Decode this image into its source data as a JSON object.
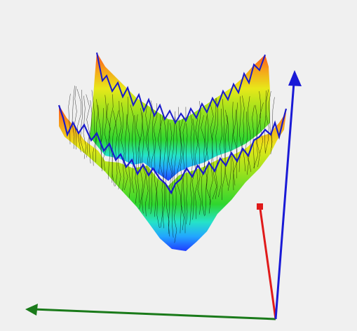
{
  "scene": {
    "background": "#f0f0f0",
    "surface": {
      "mesh_color": "#000000",
      "outline_color": "#1a1acc",
      "colormap": [
        "#1f3cff",
        "#22a6ff",
        "#25e3c8",
        "#2fd62f",
        "#a7e51c",
        "#e8e81a",
        "#f5a51a",
        "#ff4a1a"
      ]
    },
    "axes": {
      "x_color": "#1a7a1a",
      "y_color": "#e01a1a",
      "z_color": "#1a1ad6"
    }
  }
}
